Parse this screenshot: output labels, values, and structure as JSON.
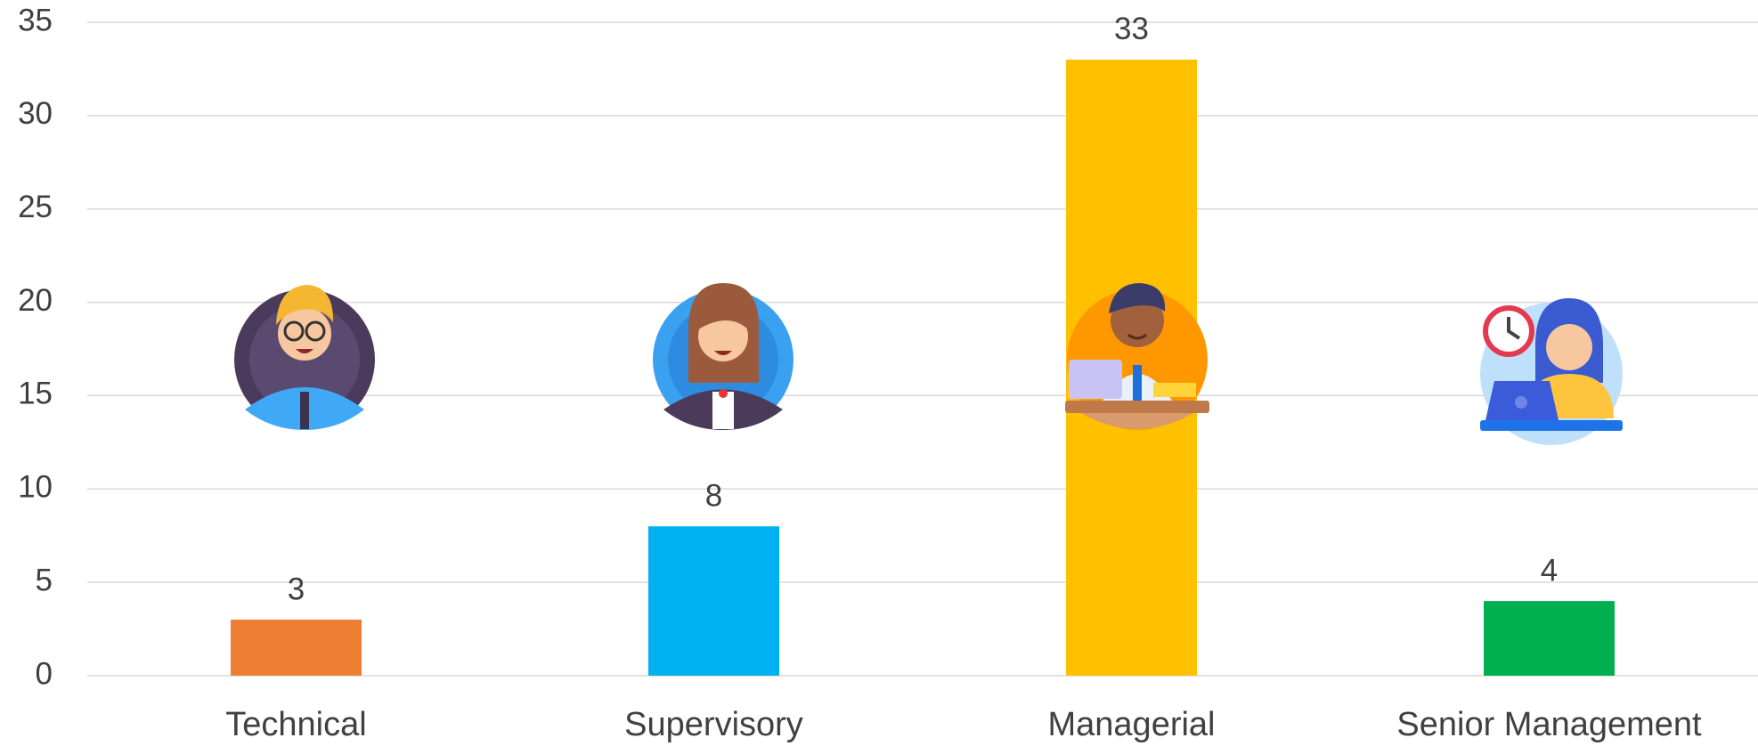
{
  "chart_data": {
    "type": "bar",
    "categories": [
      "Technical",
      "Supervisory",
      "Managerial",
      "Senior Management"
    ],
    "values": [
      3,
      8,
      33,
      4
    ],
    "colors": [
      "#ED7D31",
      "#00B0F0",
      "#FFC000",
      "#00B050"
    ],
    "ylim": [
      0,
      35
    ],
    "yticks": [
      0,
      5,
      10,
      15,
      20,
      25,
      30,
      35
    ],
    "grid": true,
    "data_labels": true
  }
}
